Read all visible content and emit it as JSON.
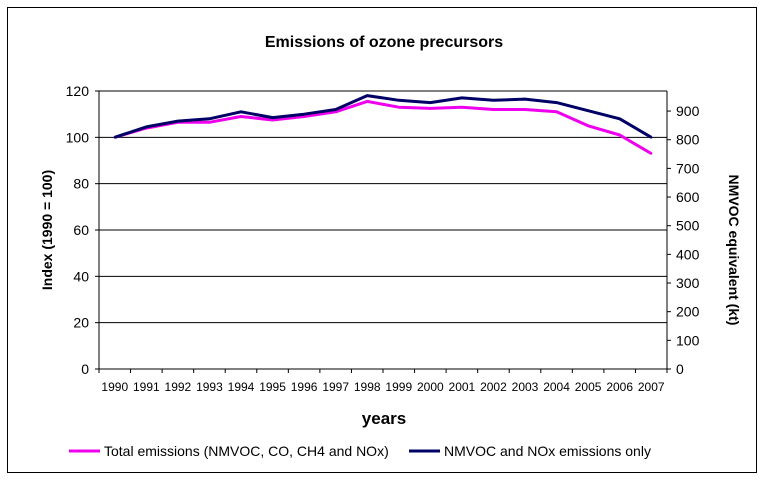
{
  "chart_data": {
    "type": "line",
    "title": "Emissions of ozone precursors",
    "xlabel": "years",
    "ylabel_left": "Index (1990 = 100)",
    "ylabel_right": "NMVOC equivalent (kt)",
    "x": [
      "1990",
      "1991",
      "1992",
      "1993",
      "1994",
      "1995",
      "1996",
      "1997",
      "1998",
      "1999",
      "2000",
      "2001",
      "2002",
      "2003",
      "2004",
      "2005",
      "2006",
      "2007"
    ],
    "ylim_left": [
      0,
      120
    ],
    "yticks_left": [
      "0",
      "20",
      "40",
      "60",
      "80",
      "100",
      "120"
    ],
    "ylim_right": [
      0,
      970
    ],
    "yticks_right": [
      "0",
      "100",
      "200",
      "300",
      "400",
      "500",
      "600",
      "700",
      "800",
      "900"
    ],
    "grid": "horizontal",
    "legend_position": "bottom",
    "series": [
      {
        "name": "Total emissions (NMVOC, CO, CH4 and NOx)",
        "color": "#ee00ee",
        "axis": "left",
        "values": [
          100,
          104,
          106.5,
          106.5,
          109,
          107.5,
          109,
          111,
          115.5,
          113,
          112.5,
          113,
          112,
          112,
          111,
          105,
          101,
          93
        ]
      },
      {
        "name": "NMVOC and NOx emissions only",
        "color": "#000066",
        "axis": "left",
        "values": [
          100,
          104.5,
          107,
          108,
          111,
          108.5,
          110,
          112,
          118,
          116,
          115,
          117,
          116,
          116.5,
          115,
          111.5,
          108,
          100
        ]
      }
    ]
  }
}
